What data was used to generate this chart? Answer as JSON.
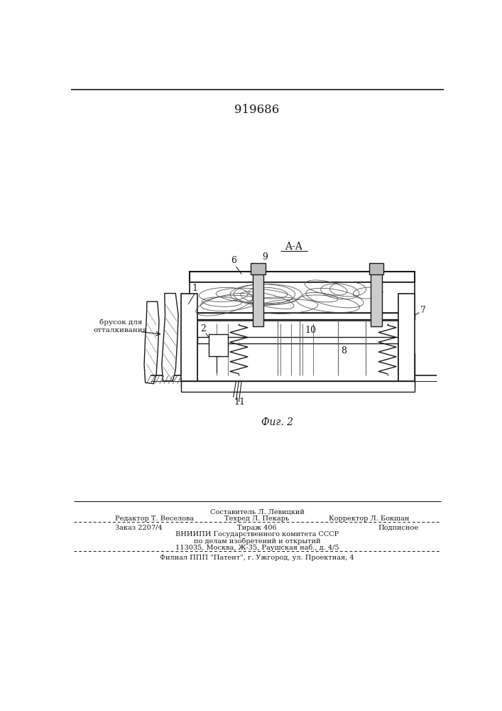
{
  "patent_number": "919686",
  "section_label": "A-A",
  "figure_label": "Фиг. 2",
  "side_label": "брусок для\nотталкивания",
  "bg_color": "#ffffff",
  "line_color": "#1a1a1a",
  "footer": {
    "editor": "Редактор Т. Веселова",
    "composer": "Составитель Л. Левицкий",
    "techreed": "Техред Л. Пекарь",
    "corrector": "Корректор Л. Бокшан",
    "order": "Заказ 2207/4",
    "tirazh": "Тираж 406",
    "podpisnoe": "Подписное",
    "vniip1": "ВНИИПИ Государственного комитета СССР",
    "vniip2": "по делам изобретений и открытий",
    "vniip3": "113035, Москва, Ж-35, Раушская наб., д. 4/5",
    "filial": "Филиал ППП \"Патент\", г. Ужгород, ул. Проектная, 4"
  }
}
